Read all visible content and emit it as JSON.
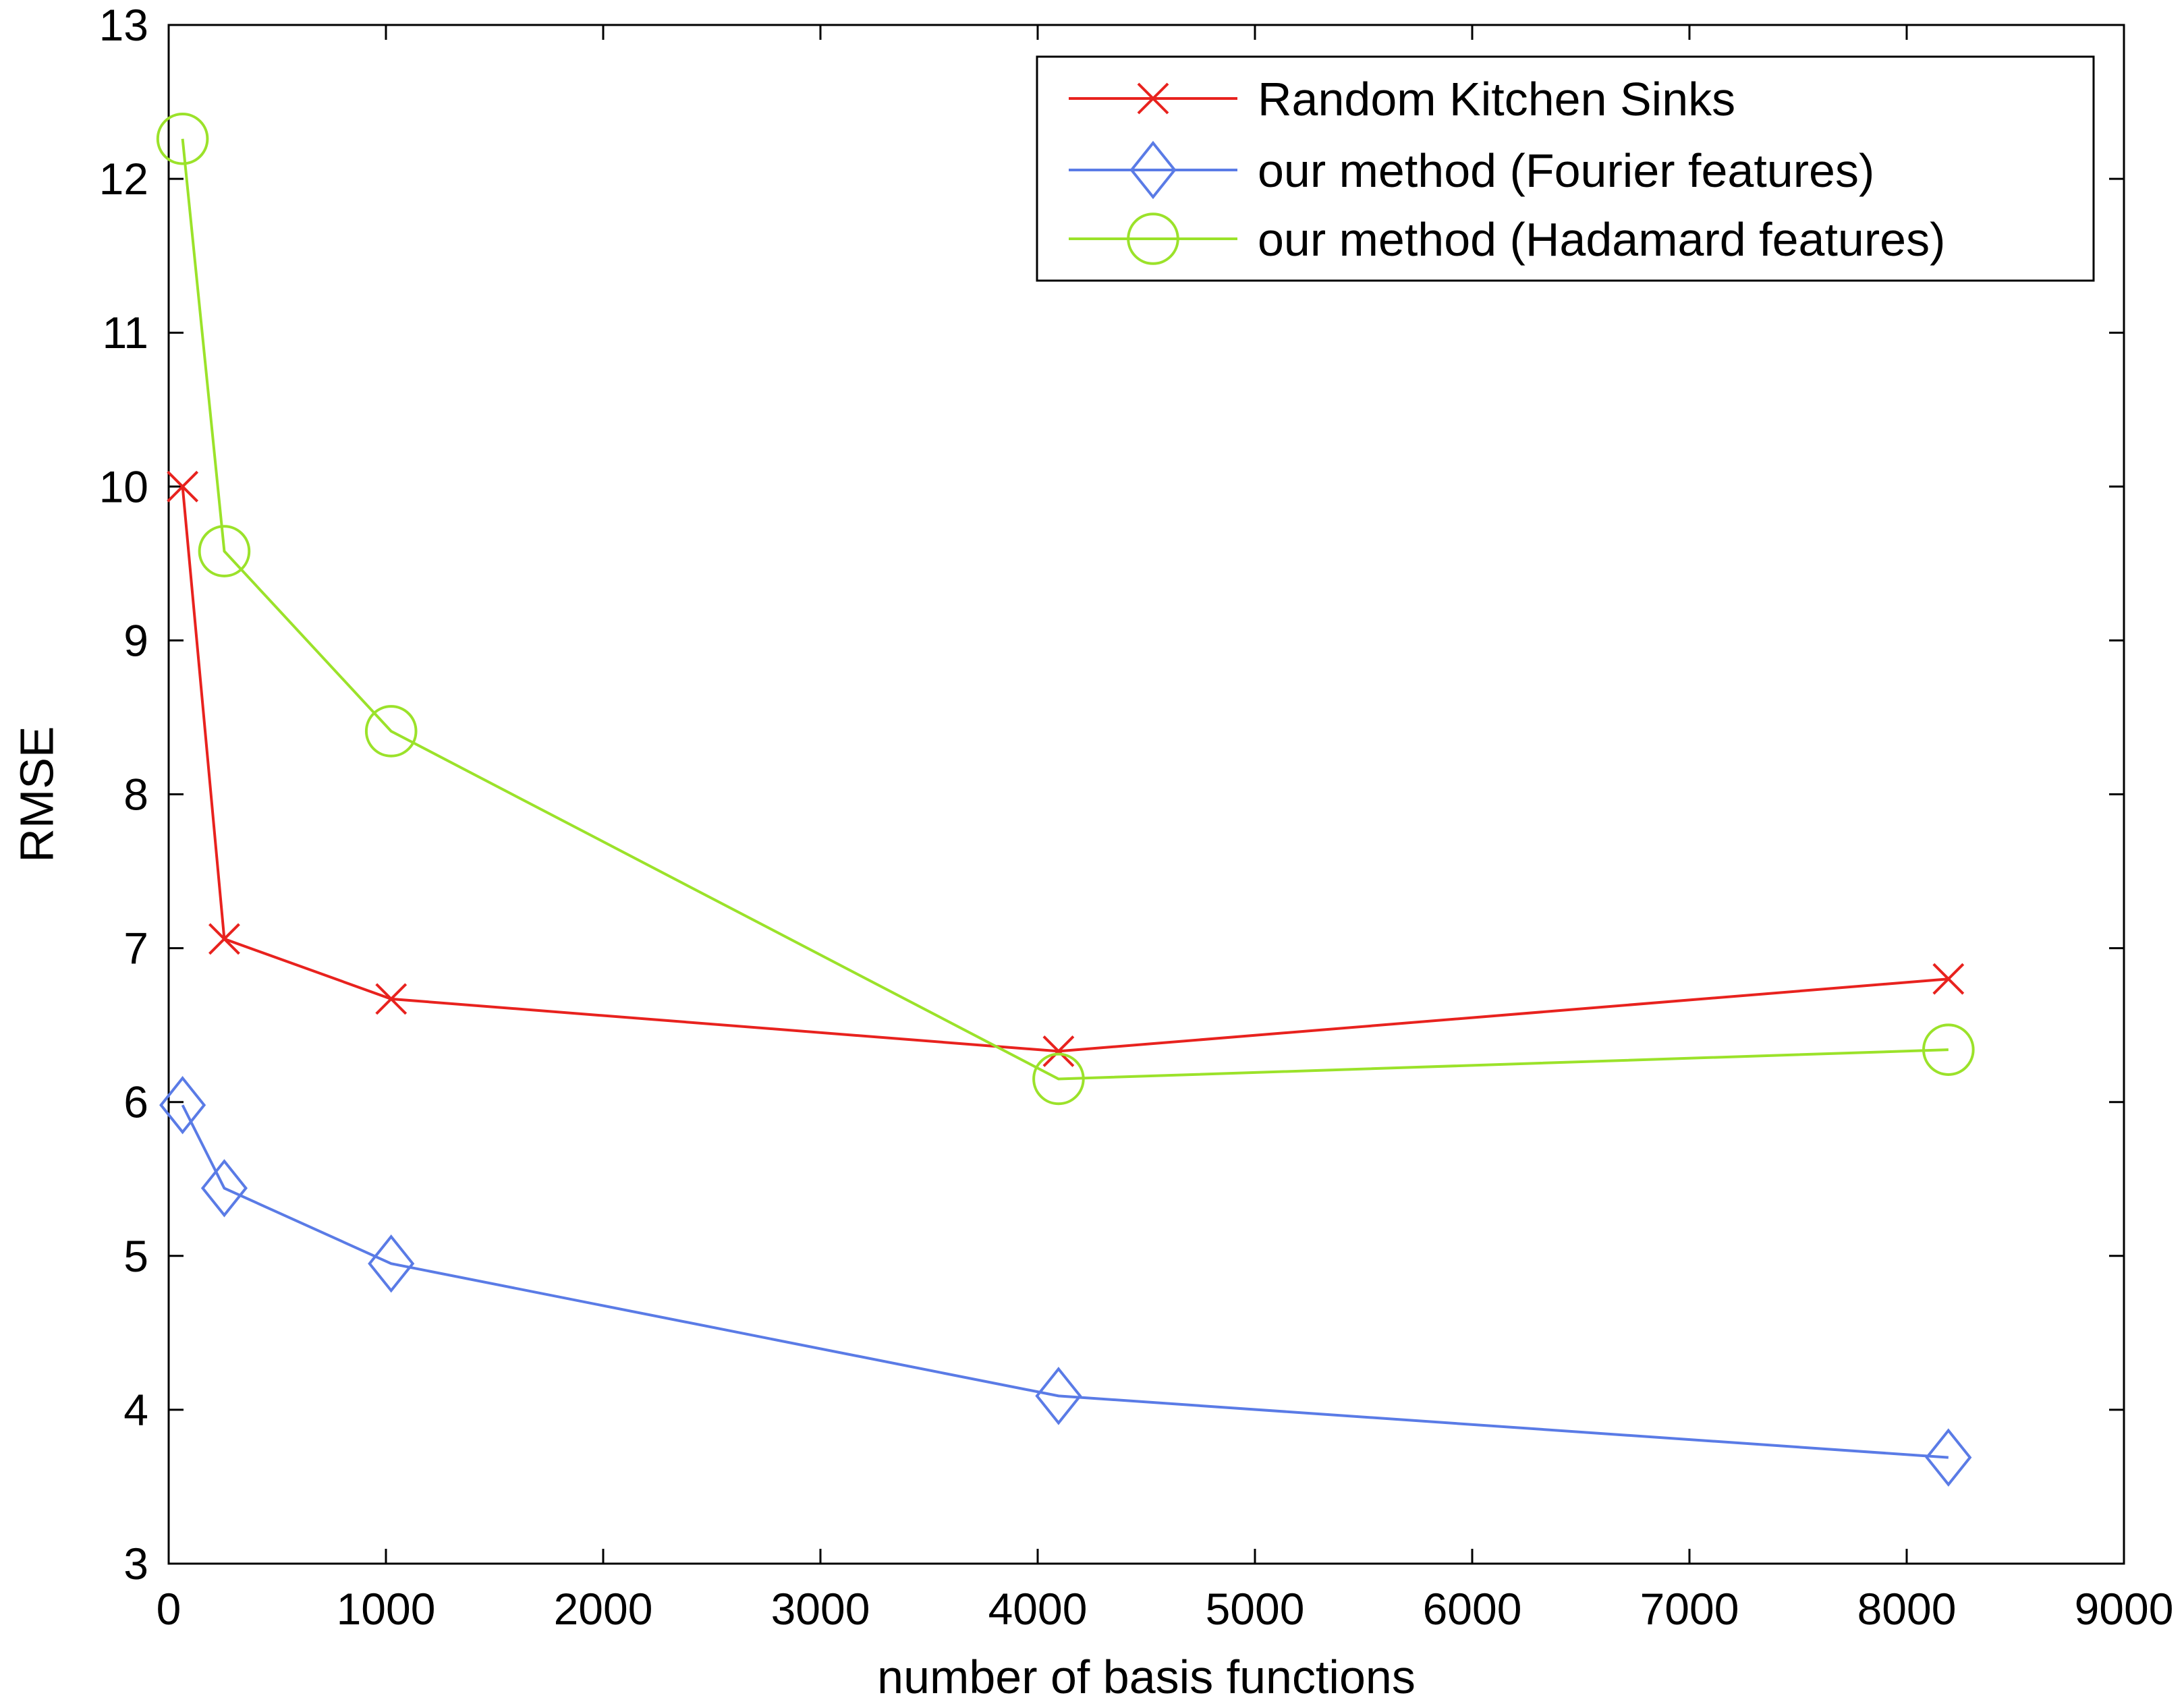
{
  "chart_data": {
    "type": "line",
    "title": "",
    "xlabel": "number of basis functions",
    "ylabel": "RMSE",
    "xlim": [
      0,
      9000
    ],
    "ylim": [
      3,
      13
    ],
    "xticks": [
      0,
      1000,
      2000,
      3000,
      4000,
      5000,
      6000,
      7000,
      8000,
      9000
    ],
    "yticks": [
      3,
      4,
      5,
      6,
      7,
      8,
      9,
      10,
      11,
      12,
      13
    ],
    "grid": false,
    "legend_position": "top-right",
    "series": [
      {
        "name": "Random Kitchen Sinks",
        "color": "#e8221e",
        "marker": "x",
        "x": [
          64,
          256,
          1024,
          4096,
          8192
        ],
        "y": [
          10.0,
          7.06,
          6.67,
          6.33,
          6.8
        ]
      },
      {
        "name": "our method (Fourier features)",
        "color": "#5a7be6",
        "marker": "diamond",
        "x": [
          64,
          256,
          1024,
          4096,
          8192
        ],
        "y": [
          5.98,
          5.44,
          4.95,
          4.09,
          3.69
        ]
      },
      {
        "name": "our method (Hadamard features)",
        "color": "#9be22a",
        "marker": "circle",
        "x": [
          64,
          256,
          1024,
          4096,
          8192
        ],
        "y": [
          12.26,
          9.58,
          8.41,
          6.15,
          6.34
        ]
      }
    ]
  }
}
